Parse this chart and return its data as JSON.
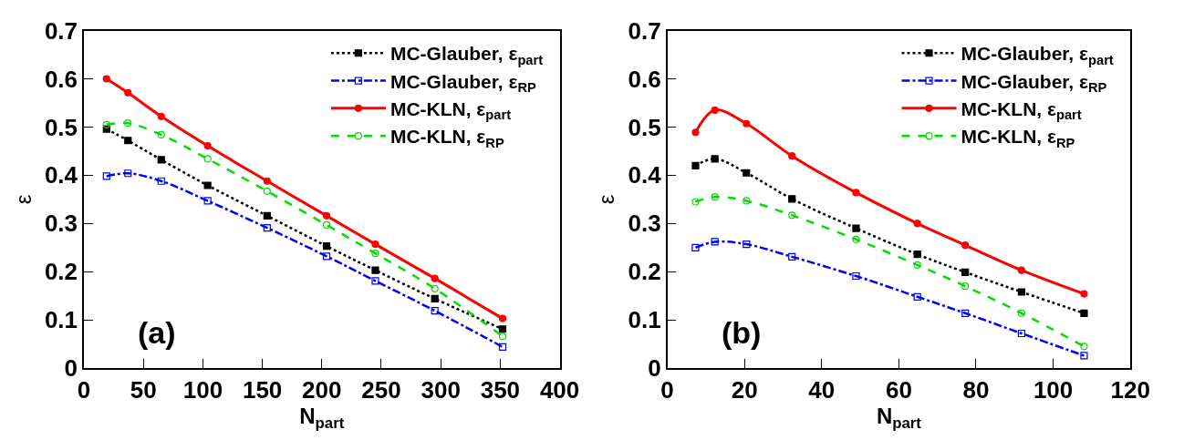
{
  "chart_data": [
    {
      "type": "line",
      "xlabel": "N$_{part}$",
      "ylabel": "ε",
      "annotations": [
        "(a)"
      ],
      "xlim": [
        0,
        400
      ],
      "xticks": [
        0,
        50,
        100,
        150,
        200,
        250,
        300,
        350,
        400
      ],
      "ylim": [
        0,
        0.7
      ],
      "yticks": [
        0,
        0.1,
        0.2,
        0.3,
        0.4,
        0.5,
        0.6,
        0.7
      ],
      "legend": "top right",
      "x": [
        19,
        37,
        65,
        104,
        154,
        204,
        245,
        295,
        352
      ],
      "series": [
        {
          "name": "MC-Glauber, ε$_{part}$",
          "color": "#000000",
          "marker": "square",
          "line_style": "dotted",
          "values": [
            0.496,
            0.472,
            0.432,
            0.379,
            0.316,
            0.253,
            0.203,
            0.144,
            0.081
          ]
        },
        {
          "name": "MC-Glauber, ε$_{RP}$",
          "color": "#0000ff",
          "marker": "square-open",
          "line_style": "dashdot",
          "values": [
            0.398,
            0.404,
            0.388,
            0.347,
            0.291,
            0.232,
            0.181,
            0.119,
            0.044
          ]
        },
        {
          "name": "MC-KLN, ε$_{part}$",
          "color": "#ff0000",
          "marker": "circle",
          "line_style": "solid",
          "values": [
            0.6,
            0.571,
            0.522,
            0.461,
            0.388,
            0.316,
            0.257,
            0.186,
            0.103
          ]
        },
        {
          "name": "MC-KLN, ε$_{RP}$",
          "color": "#00dd00",
          "marker": "circle-open",
          "line_style": "dashed",
          "values": [
            0.505,
            0.508,
            0.484,
            0.434,
            0.367,
            0.297,
            0.238,
            0.165,
            0.066
          ]
        }
      ]
    },
    {
      "type": "line",
      "xlabel": "N$_{part}$",
      "ylabel": "ε",
      "annotations": [
        "(b)"
      ],
      "xlim": [
        0,
        120
      ],
      "xticks": [
        0,
        20,
        40,
        60,
        80,
        100,
        120
      ],
      "ylim": [
        0,
        0.7
      ],
      "yticks": [
        0,
        0.1,
        0.2,
        0.3,
        0.4,
        0.5,
        0.6,
        0.7
      ],
      "legend": "top right",
      "x": [
        7.3,
        12.3,
        20.5,
        32.3,
        48.9,
        64.8,
        77.2,
        91.8,
        108
      ],
      "series": [
        {
          "name": "MC-Glauber, ε$_{part}$",
          "color": "#000000",
          "marker": "square",
          "line_style": "dotted",
          "values": [
            0.42,
            0.434,
            0.405,
            0.351,
            0.29,
            0.236,
            0.199,
            0.158,
            0.114
          ]
        },
        {
          "name": "MC-Glauber, ε$_{RP}$",
          "color": "#0000ff",
          "marker": "square-open",
          "line_style": "dashdot",
          "values": [
            0.25,
            0.262,
            0.257,
            0.231,
            0.191,
            0.148,
            0.114,
            0.072,
            0.026
          ]
        },
        {
          "name": "MC-KLN, ε$_{part}$",
          "color": "#ff0000",
          "marker": "circle",
          "line_style": "solid",
          "values": [
            0.489,
            0.535,
            0.507,
            0.44,
            0.364,
            0.3,
            0.255,
            0.203,
            0.154
          ]
        },
        {
          "name": "MC-KLN, ε$_{RP}$",
          "color": "#00dd00",
          "marker": "circle-open",
          "line_style": "dashed",
          "values": [
            0.345,
            0.355,
            0.347,
            0.317,
            0.267,
            0.214,
            0.17,
            0.114,
            0.045
          ]
        }
      ]
    }
  ]
}
